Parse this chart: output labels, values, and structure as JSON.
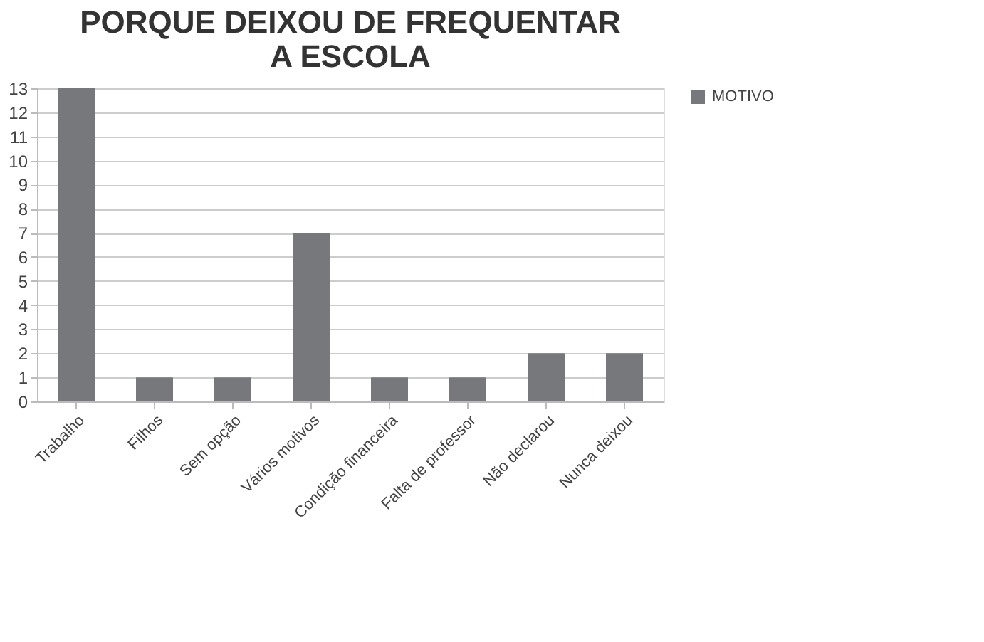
{
  "chart_data": {
    "type": "bar",
    "title": "PORQUE DEIXOU DE FREQUENTAR A ESCOLA",
    "categories": [
      "Trabalho",
      "Filhos",
      "Sem opção",
      "Vários motivos",
      "Condição financeira",
      "Falta de professor",
      "Não declarou",
      "Nunca deixou"
    ],
    "series": [
      {
        "name": "MOTIVO",
        "color": "#77787b",
        "values": [
          13,
          1,
          1,
          7,
          1,
          1,
          2,
          2
        ]
      }
    ],
    "ylim": [
      0,
      13
    ],
    "yticks": [
      0,
      1,
      2,
      3,
      4,
      5,
      6,
      7,
      8,
      9,
      10,
      11,
      12,
      13
    ],
    "grid": "y",
    "legend": "right"
  }
}
